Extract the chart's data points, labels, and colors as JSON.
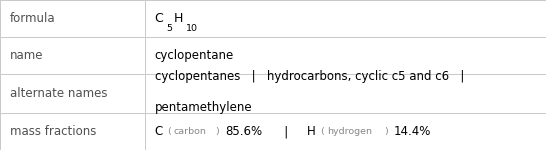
{
  "name": "cyclopentane",
  "alt_names": [
    "cyclopentanes",
    "hydrocarbons, cyclic c5 and c6",
    "pentamethylene"
  ],
  "mass_fractions": [
    {
      "element": "C",
      "label": "carbon",
      "value": "85.6%"
    },
    {
      "element": "H",
      "label": "hydrogen",
      "value": "14.4%"
    }
  ],
  "col_split": 0.265,
  "bg_color": "#ffffff",
  "border_color": "#c8c8c8",
  "label_color": "#505050",
  "value_color": "#000000",
  "small_color": "#888888",
  "font_size": 8.5,
  "small_font_size": 6.8,
  "row_tops": [
    1.0,
    0.755,
    0.51,
    0.245,
    0.0
  ]
}
